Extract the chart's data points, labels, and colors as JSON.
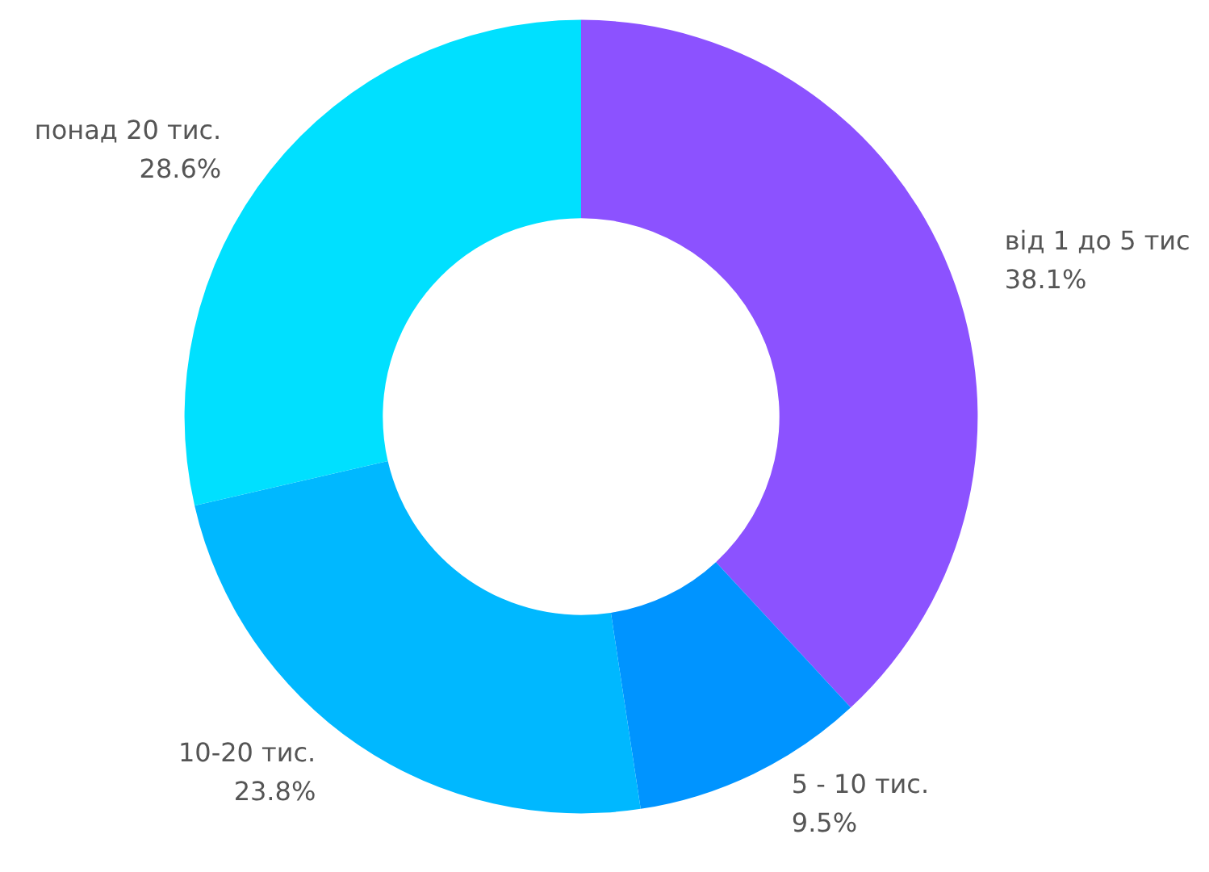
{
  "chart_data": {
    "type": "donut",
    "categories": [
      "від 1 до 5 тис",
      "5 - 10 тис.",
      "10-20 тис.",
      "понад 20 тис."
    ],
    "values": [
      38.1,
      9.5,
      23.8,
      28.6
    ],
    "colors": [
      "#8c52ff",
      "#0094ff",
      "#00b8ff",
      "#00e0ff"
    ],
    "value_labels": [
      "38.1%",
      "9.5%",
      "23.8%",
      "28.6%"
    ],
    "legend": false
  }
}
